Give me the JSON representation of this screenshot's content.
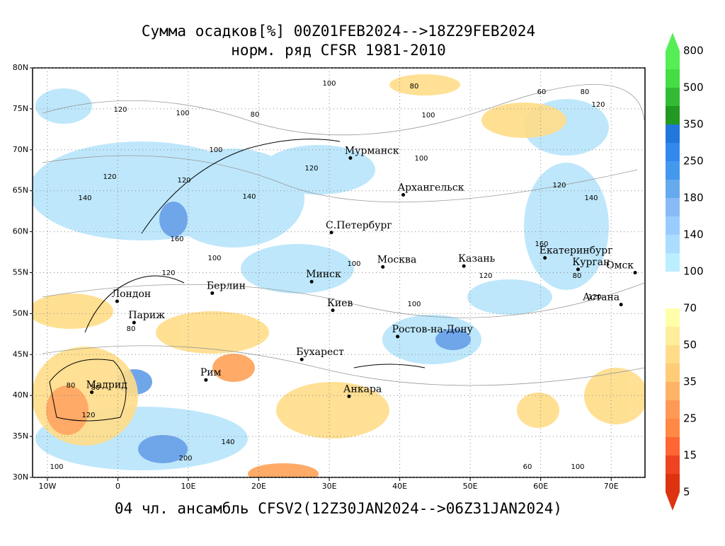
{
  "header": {
    "title": "Сумма осадков[%] 00Z01FEB2024-->18Z29FEB2024",
    "subtitle": "норм. ряд CFSR 1981-2010"
  },
  "footer": "04 чл. ансамбль CFSV2(12Z30JAN2024-->06Z31JAN2024)",
  "map": {
    "lon_ticks": [
      {
        "value": -10,
        "label": "10W"
      },
      {
        "value": 0,
        "label": "0"
      },
      {
        "value": 10,
        "label": "10E"
      },
      {
        "value": 20,
        "label": "20E"
      },
      {
        "value": 30,
        "label": "30E"
      },
      {
        "value": 40,
        "label": "40E"
      },
      {
        "value": 50,
        "label": "50E"
      },
      {
        "value": 60,
        "label": "60E"
      },
      {
        "value": 70,
        "label": "70E"
      }
    ],
    "lat_ticks": [
      {
        "value": 30,
        "label": "30N"
      },
      {
        "value": 35,
        "label": "35N"
      },
      {
        "value": 40,
        "label": "40N"
      },
      {
        "value": 45,
        "label": "45N"
      },
      {
        "value": 50,
        "label": "50N"
      },
      {
        "value": 55,
        "label": "55N"
      },
      {
        "value": 60,
        "label": "60N"
      },
      {
        "value": 65,
        "label": "65N"
      },
      {
        "value": 70,
        "label": "70N"
      },
      {
        "value": 75,
        "label": "75N"
      },
      {
        "value": 80,
        "label": "80N"
      }
    ],
    "cities": [
      "Мурманск",
      "Архангельск",
      "С.Петербург",
      "Москва",
      "Казань",
      "Екатеринбург",
      "Курган",
      "Омск",
      "Астана",
      "Минск",
      "Берлин",
      "Лондон",
      "Париж",
      "Киев",
      "Ростов-на-Дону",
      "Бухарест",
      "Рим",
      "Мадрид",
      "Анкара"
    ],
    "contour_labels": [
      "120",
      "100",
      "100",
      "80",
      "80",
      "60",
      "80",
      "120",
      "100",
      "120",
      "100",
      "120",
      "140",
      "160",
      "100",
      "120",
      "140",
      "120",
      "100",
      "120",
      "80",
      "100",
      "120",
      "140",
      "100",
      "80",
      "160",
      "200",
      "140",
      "120",
      "100",
      "80",
      "60",
      "100",
      "120",
      "80"
    ]
  },
  "colorbar": {
    "labels": [
      800,
      500,
      350,
      250,
      180,
      140,
      100,
      70,
      50,
      35,
      25,
      15,
      5
    ],
    "colors": [
      "#55ee55",
      "#44dd44",
      "#33bb33",
      "#229922",
      "#2277dd",
      "#3388ee",
      "#4499ee",
      "#66aaee",
      "#88bbf5",
      "#99ccff",
      "#aaddff",
      "#bbeeff",
      "#ffffff",
      "#ffffff",
      "#ffffaa",
      "#ffee99",
      "#ffdd88",
      "#ffcc77",
      "#ffb366",
      "#ff9955",
      "#ff8844",
      "#ff6633",
      "#ee4422",
      "#dd3311"
    ]
  }
}
